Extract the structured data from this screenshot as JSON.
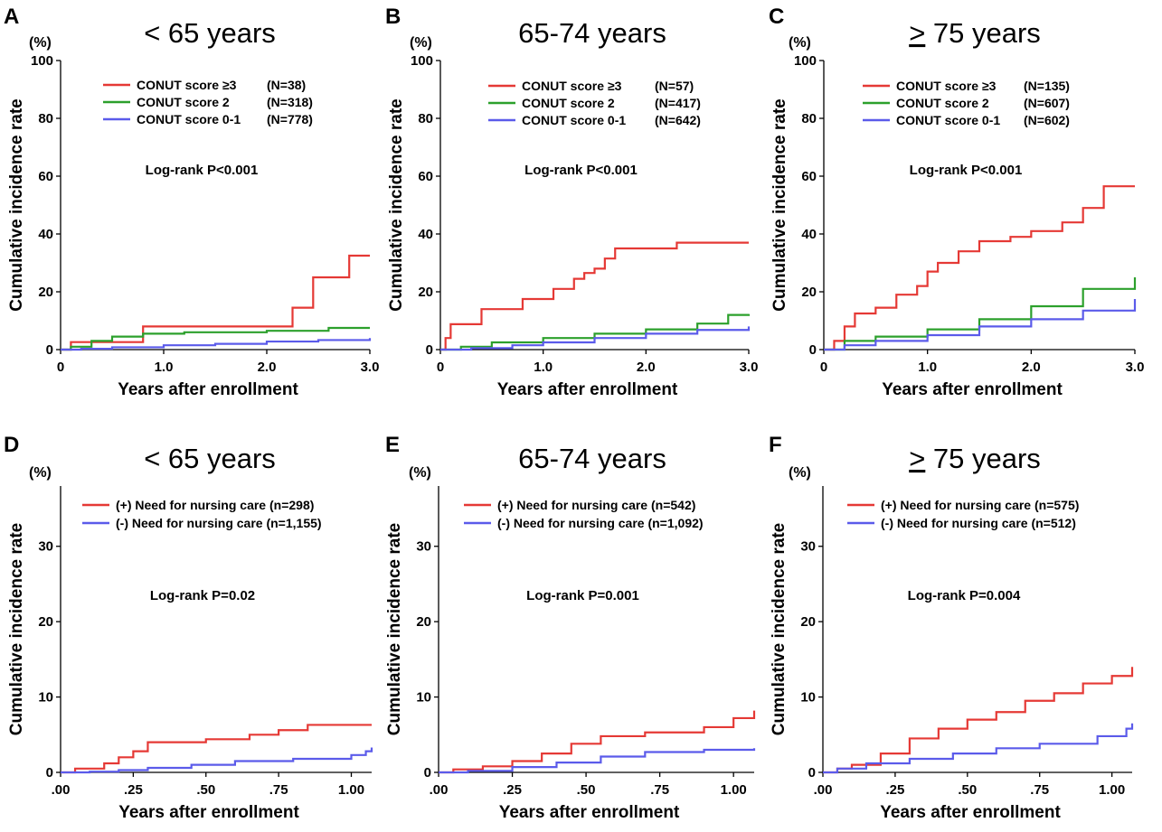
{
  "colors": {
    "red": "#e53935",
    "green": "#2ca02c",
    "blue": "#5b5bea"
  },
  "chart_data": [
    {
      "type": "line",
      "panel": "A",
      "title": "< 65 years",
      "unit": "(%)",
      "xlabel": "Years after enrollment",
      "ylabel": "Cumulative incidence rate",
      "xlim": [
        0,
        3.0
      ],
      "ylim": [
        0,
        100
      ],
      "xticks": [
        0,
        1.0,
        2.0,
        3.0
      ],
      "xtick_labels": [
        "0",
        "1.0",
        "2.0",
        "3.0"
      ],
      "yticks": [
        0,
        20,
        40,
        60,
        80,
        100
      ],
      "ytick_labels": [
        "0",
        "20",
        "40",
        "60",
        "80",
        "100"
      ],
      "logrank": "Log-rank P<0.001",
      "series": [
        {
          "name": "CONUT score ≥3",
          "n": "(N=38)",
          "color": "red",
          "x": [
            0,
            0.1,
            0.8,
            2.2,
            2.25,
            2.45,
            2.75,
            2.8,
            3.0
          ],
          "y": [
            0,
            2.6,
            8,
            8,
            14.5,
            25,
            25,
            32.5,
            32.5
          ]
        },
        {
          "name": "CONUT score 2",
          "n": "(N=318)",
          "color": "green",
          "x": [
            0,
            0.1,
            0.3,
            0.5,
            0.8,
            1.2,
            2.0,
            2.6,
            3.0
          ],
          "y": [
            0,
            1,
            3,
            4.5,
            5.5,
            6,
            6.5,
            7.5,
            7.5
          ]
        },
        {
          "name": "CONUT score 0-1",
          "n": "(N=778)",
          "color": "blue",
          "x": [
            0,
            0.2,
            0.5,
            1.0,
            1.5,
            2.0,
            2.5,
            3.0
          ],
          "y": [
            0,
            0.3,
            0.8,
            1.5,
            2,
            2.8,
            3.3,
            4
          ]
        }
      ]
    },
    {
      "type": "line",
      "panel": "B",
      "title": "65-74 years",
      "unit": "(%)",
      "xlabel": "Years after enrollment",
      "ylabel": "Cumulative incidence rate",
      "xlim": [
        0,
        3.0
      ],
      "ylim": [
        0,
        100
      ],
      "xticks": [
        0,
        1.0,
        2.0,
        3.0
      ],
      "xtick_labels": [
        "0",
        "1.0",
        "2.0",
        "3.0"
      ],
      "yticks": [
        0,
        20,
        40,
        60,
        80,
        100
      ],
      "ytick_labels": [
        "0",
        "20",
        "40",
        "60",
        "80",
        "100"
      ],
      "logrank": "Log-rank P<0.001",
      "series": [
        {
          "name": "CONUT score ≥3",
          "n": "(N=57)",
          "color": "red",
          "x": [
            0,
            0.05,
            0.1,
            0.3,
            0.4,
            0.8,
            1.1,
            1.3,
            1.4,
            1.5,
            1.6,
            1.7,
            2.3,
            3.0
          ],
          "y": [
            0,
            4,
            8.8,
            8.8,
            14,
            17.5,
            21,
            24.5,
            26.5,
            28,
            31.5,
            35,
            37,
            37
          ]
        },
        {
          "name": "CONUT score 2",
          "n": "(N=417)",
          "color": "green",
          "x": [
            0,
            0.2,
            0.5,
            1.0,
            1.5,
            2.0,
            2.5,
            2.8,
            3.0
          ],
          "y": [
            0,
            1,
            2.5,
            4,
            5.5,
            7,
            9,
            12,
            12.3
          ]
        },
        {
          "name": "CONUT score 0-1",
          "n": "(N=642)",
          "color": "blue",
          "x": [
            0,
            0.3,
            0.7,
            1.0,
            1.5,
            2.0,
            2.5,
            3.0
          ],
          "y": [
            0,
            0.5,
            1.5,
            2.5,
            4,
            5.5,
            6.8,
            8
          ]
        }
      ]
    },
    {
      "type": "line",
      "panel": "C",
      "title": "≥ 75 years",
      "unit": "(%)",
      "xlabel": "Years after enrollment",
      "ylabel": "Cumulative incidence rate",
      "xlim": [
        0,
        3.0
      ],
      "ylim": [
        0,
        100
      ],
      "xticks": [
        0,
        1.0,
        2.0,
        3.0
      ],
      "xtick_labels": [
        "0",
        "1.0",
        "2.0",
        "3.0"
      ],
      "yticks": [
        0,
        20,
        40,
        60,
        80,
        100
      ],
      "ytick_labels": [
        "0",
        "20",
        "40",
        "60",
        "80",
        "100"
      ],
      "logrank": "Log-rank P<0.001",
      "series": [
        {
          "name": "CONUT score ≥3",
          "n": "(N=135)",
          "color": "red",
          "x": [
            0,
            0.1,
            0.2,
            0.3,
            0.5,
            0.7,
            0.9,
            1.0,
            1.1,
            1.3,
            1.5,
            1.8,
            2.0,
            2.3,
            2.5,
            2.7,
            3.0
          ],
          "y": [
            0,
            3,
            8,
            12.5,
            14.5,
            19,
            22,
            27,
            30,
            34,
            37.5,
            39,
            41,
            44,
            49,
            56.5,
            56.5
          ]
        },
        {
          "name": "CONUT score 2",
          "n": "(N=607)",
          "color": "green",
          "x": [
            0,
            0.2,
            0.5,
            1.0,
            1.5,
            2.0,
            2.5,
            3.0
          ],
          "y": [
            0,
            3,
            4.5,
            7,
            10.5,
            15,
            21,
            25
          ]
        },
        {
          "name": "CONUT score 0-1",
          "n": "(N=602)",
          "color": "blue",
          "x": [
            0,
            0.2,
            0.5,
            1.0,
            1.5,
            2.0,
            2.5,
            3.0
          ],
          "y": [
            0,
            1.5,
            3,
            5,
            8,
            10.5,
            13.5,
            17.5
          ]
        }
      ]
    },
    {
      "type": "line",
      "panel": "D",
      "title": "< 65 years",
      "unit": "(%)",
      "xlabel": "Years after enrollment",
      "ylabel": "Cumulative incidence rate",
      "xlim": [
        0,
        1.07
      ],
      "ylim": [
        0,
        38
      ],
      "xticks": [
        0,
        0.25,
        0.5,
        0.75,
        1.0
      ],
      "xtick_labels": [
        ".00",
        ".25",
        ".50",
        ".75",
        "1.00"
      ],
      "yticks": [
        0,
        10,
        20,
        30
      ],
      "ytick_labels": [
        "0",
        "10",
        "20",
        "30"
      ],
      "logrank": "Log-rank P=0.02",
      "series": [
        {
          "name": "(+) Need for nursing care (n=298)",
          "color": "red",
          "x": [
            0,
            0.05,
            0.15,
            0.2,
            0.25,
            0.3,
            0.5,
            0.65,
            0.75,
            0.85,
            1.07
          ],
          "y": [
            0,
            0.5,
            1.2,
            2,
            2.8,
            4,
            4.4,
            5,
            5.6,
            6.3,
            6.3
          ]
        },
        {
          "name": "(-)  Need for nursing care (n=1,155)",
          "color": "blue",
          "x": [
            0,
            0.1,
            0.2,
            0.3,
            0.45,
            0.6,
            0.8,
            1.0,
            1.05,
            1.07
          ],
          "y": [
            0,
            0.1,
            0.3,
            0.6,
            1,
            1.5,
            1.8,
            2.3,
            2.8,
            3.3
          ]
        }
      ]
    },
    {
      "type": "line",
      "panel": "E",
      "title": "65-74 years",
      "unit": "(%)",
      "xlabel": "Years after enrollment",
      "ylabel": "Cumulative incidence rate",
      "xlim": [
        0,
        1.07
      ],
      "ylim": [
        0,
        38
      ],
      "xticks": [
        0,
        0.25,
        0.5,
        0.75,
        1.0
      ],
      "xtick_labels": [
        ".00",
        ".25",
        ".50",
        ".75",
        "1.00"
      ],
      "yticks": [
        0,
        10,
        20,
        30
      ],
      "ytick_labels": [
        "0",
        "10",
        "20",
        "30"
      ],
      "logrank": "Log-rank P=0.001",
      "series": [
        {
          "name": "(+) Need for nursing care (n=542)",
          "color": "red",
          "x": [
            0,
            0.05,
            0.15,
            0.25,
            0.35,
            0.45,
            0.55,
            0.7,
            0.9,
            1.0,
            1.07
          ],
          "y": [
            0,
            0.4,
            0.8,
            1.5,
            2.5,
            3.8,
            4.8,
            5.3,
            6,
            7.2,
            8.2
          ]
        },
        {
          "name": "(-)  Need for nursing care (n=1,092)",
          "color": "blue",
          "x": [
            0,
            0.1,
            0.25,
            0.4,
            0.55,
            0.7,
            0.9,
            1.07
          ],
          "y": [
            0,
            0.2,
            0.7,
            1.3,
            2.1,
            2.7,
            3.0,
            3.2
          ]
        }
      ]
    },
    {
      "type": "line",
      "panel": "F",
      "title": "≥ 75 years",
      "unit": "(%)",
      "xlabel": "Years after enrollment",
      "ylabel": "Cumulative incidence rate",
      "xlim": [
        0,
        1.07
      ],
      "ylim": [
        0,
        38
      ],
      "xticks": [
        0,
        0.25,
        0.5,
        0.75,
        1.0
      ],
      "xtick_labels": [
        ".00",
        ".25",
        ".50",
        ".75",
        "1.00"
      ],
      "yticks": [
        0,
        10,
        20,
        30
      ],
      "ytick_labels": [
        "0",
        "10",
        "20",
        "30"
      ],
      "logrank": "Log-rank P=0.004",
      "series": [
        {
          "name": "(+) Need for nursing care (n=575)",
          "color": "red",
          "x": [
            0,
            0.05,
            0.1,
            0.2,
            0.3,
            0.4,
            0.5,
            0.6,
            0.7,
            0.8,
            0.9,
            1.0,
            1.07
          ],
          "y": [
            0,
            0.5,
            1,
            2.5,
            4.5,
            5.8,
            7,
            8,
            9.5,
            10.5,
            11.8,
            12.8,
            14
          ]
        },
        {
          "name": "(-)  Need for nursing care (n=512)",
          "color": "blue",
          "x": [
            0,
            0.05,
            0.15,
            0.3,
            0.45,
            0.6,
            0.75,
            0.95,
            1.05,
            1.07
          ],
          "y": [
            0,
            0.5,
            1.2,
            1.8,
            2.5,
            3.2,
            3.8,
            4.8,
            5.8,
            6.5
          ]
        }
      ]
    }
  ]
}
